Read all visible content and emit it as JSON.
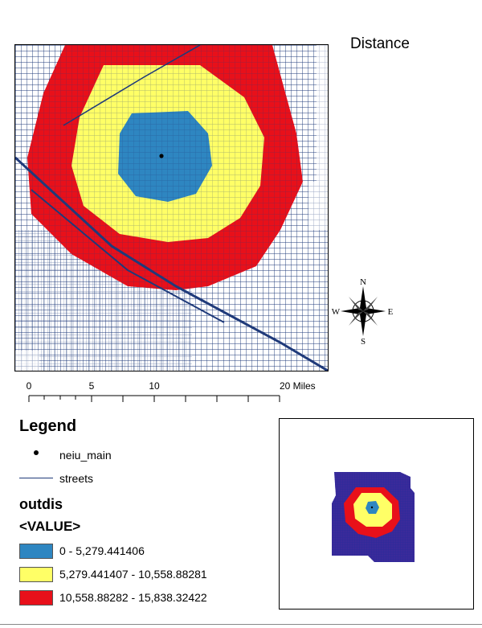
{
  "title": "Distance",
  "colors": {
    "band1": "#2e86c1",
    "band2": "#ffff66",
    "band3": "#e8101a",
    "streets": "#1f3a7a",
    "point": "#000000"
  },
  "compass": {
    "n": "N",
    "s": "S",
    "e": "E",
    "w": "W"
  },
  "scale": {
    "ticks": [
      "0",
      "5",
      "10",
      "20 Miles"
    ]
  },
  "legend": {
    "title": "Legend",
    "point_layer": "neiu_main",
    "line_layer": "streets",
    "raster_layer": "outdis",
    "field": "<VALUE>",
    "classes": [
      {
        "label": "0 - 5,279.441406",
        "color": "#2e86c1"
      },
      {
        "label": "5,279.441407 - 10,558.88281",
        "color": "#ffff66"
      },
      {
        "label": "10,558.88282 - 15,838.32422",
        "color": "#e8101a"
      }
    ]
  }
}
